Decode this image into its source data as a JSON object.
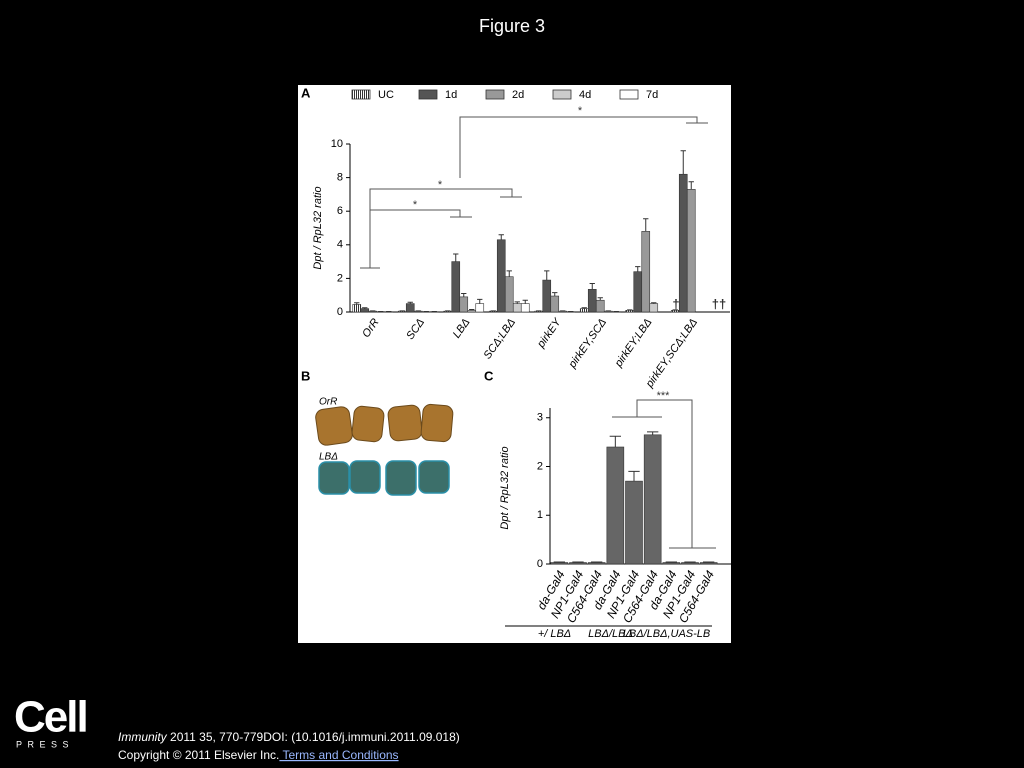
{
  "title": "Figure 3",
  "panel_b": {
    "panel": "B",
    "labels": [
      "OrR",
      "LBΔ"
    ]
  },
  "footer": {
    "logo": "Cell",
    "logo_sub": "PRESS",
    "journal": "Immunity",
    "citation": " 2011 35, 770-779DOI: (10.1016/j.immuni.2011.09.018)",
    "copyright": "Copyright © 2011 Elsevier Inc.",
    "link": " Terms and Conditions"
  },
  "chart_data": [
    {
      "type": "bar",
      "panel": "A",
      "ylabel": "Dpt / RpL32 ratio",
      "categories": [
        "OrR",
        "SCΔ",
        "LBΔ",
        "SCΔ;LBΔ",
        "pirkEY",
        "pirkEY,SCΔ",
        "pirkEY;LBΔ",
        "pirkEY,SCΔ;LBΔ"
      ],
      "series": [
        {
          "name": "UC",
          "color": "#ffffff",
          "pattern": "hatched",
          "values": [
            0.45,
            0.05,
            0.05,
            0.05,
            0.05,
            0.2,
            0.1,
            0.1
          ],
          "errors": [
            0.1,
            0.02,
            0.02,
            0.02,
            0.02,
            0.05,
            0.03,
            0.03
          ]
        },
        {
          "name": "1d",
          "color": "#555555",
          "values": [
            0.2,
            0.5,
            3.0,
            4.3,
            1.9,
            1.35,
            2.4,
            8.2
          ],
          "errors": [
            0.05,
            0.08,
            0.45,
            0.3,
            0.55,
            0.35,
            0.3,
            1.4
          ]
        },
        {
          "name": "2d",
          "color": "#999999",
          "values": [
            0.05,
            0.05,
            0.9,
            2.1,
            0.95,
            0.7,
            4.8,
            7.3
          ],
          "errors": [
            0.02,
            0.02,
            0.2,
            0.35,
            0.2,
            0.15,
            0.75,
            0.45
          ]
        },
        {
          "name": "4d",
          "color": "#cccccc",
          "values": [
            0.02,
            0.02,
            0.1,
            0.5,
            0.05,
            0.05,
            0.5,
            null
          ],
          "errors": [
            0.01,
            0.01,
            0.05,
            0.1,
            0.02,
            0.02,
            0.05,
            null
          ]
        },
        {
          "name": "7d",
          "color": "#ffffff",
          "values": [
            0.02,
            0.02,
            0.5,
            0.5,
            0.02,
            0.02,
            null,
            null
          ],
          "errors": [
            0.01,
            0.01,
            0.25,
            0.2,
            0.01,
            0.01,
            null,
            null
          ]
        }
      ],
      "ylim": [
        0,
        10
      ],
      "yticks": [
        0,
        2,
        4,
        6,
        8,
        10
      ],
      "annotations": [
        "*",
        "*",
        "*",
        "†",
        "††"
      ]
    },
    {
      "type": "bar",
      "panel": "C",
      "ylabel": "Dpt / RpL32 ratio",
      "categories": [
        "da-Gal4",
        "NP1-Gal4",
        "C564-Gal4",
        "da-Gal4",
        "NP1-Gal4",
        "C564-Gal4",
        "da-Gal4",
        "NP1-Gal4",
        "C564-Gal4"
      ],
      "values": [
        0.03,
        0.03,
        0.03,
        2.4,
        1.7,
        2.65,
        0.03,
        0.03,
        0.03
      ],
      "errors": [
        0.01,
        0.01,
        0.01,
        0.22,
        0.2,
        0.06,
        0.01,
        0.01,
        0.01
      ],
      "color": "#666666",
      "ylim": [
        0,
        3.2
      ],
      "yticks": [
        0,
        1,
        2,
        3
      ],
      "groups": [
        "+/ LBΔ",
        "LBΔ/LBΔ",
        "LBΔ/LBΔ,UAS-LB"
      ],
      "annotations": [
        "***"
      ]
    }
  ]
}
